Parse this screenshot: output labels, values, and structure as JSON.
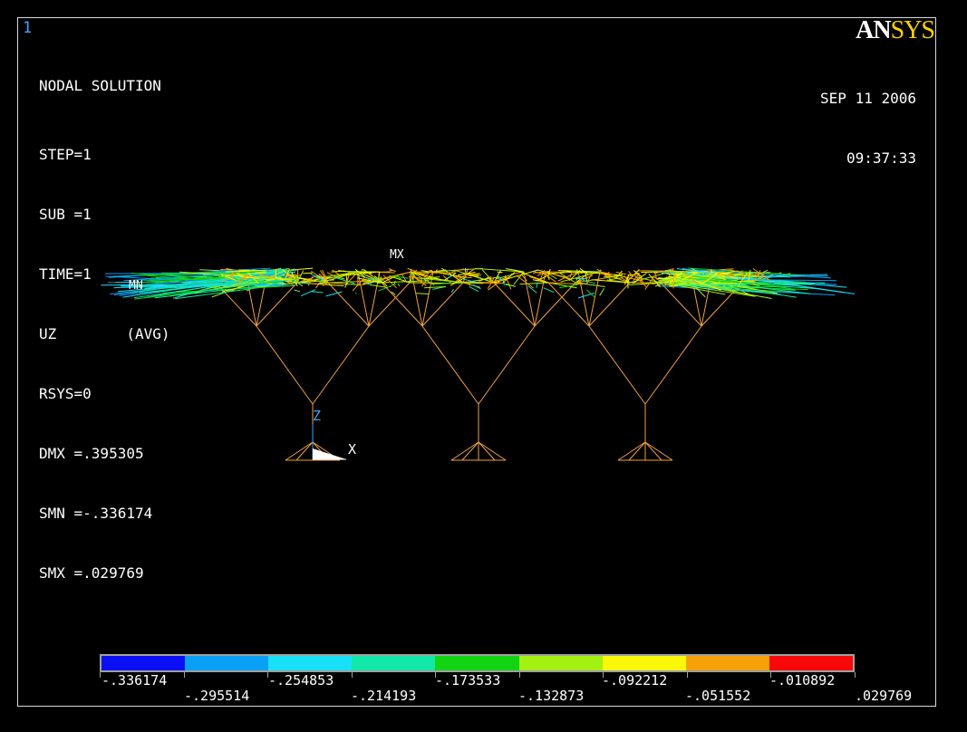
{
  "window_number": "1",
  "header": {
    "title": "NODAL SOLUTION",
    "lines": [
      "STEP=1",
      "SUB =1",
      "TIME=1",
      "UZ        (AVG)",
      "RSYS=0",
      "DMX =.395305",
      "SMN =-.336174",
      "SMX =.029769"
    ]
  },
  "date": "SEP 11 2006",
  "time": "09:37:33",
  "logo": {
    "part1": "AN",
    "part2": "SYS"
  },
  "markers": {
    "max": "MX",
    "min": "MN"
  },
  "triad": {
    "z": "Z",
    "x": "X"
  },
  "legend": {
    "colors": [
      "#0a10f5",
      "#0aa0f5",
      "#18e0f8",
      "#12e8a8",
      "#12d412",
      "#a4f012",
      "#f8f808",
      "#f8a008",
      "#f80808"
    ],
    "labels_top": [
      "-.336174",
      "-.254853",
      "-.173533",
      "-.092212",
      "-.010892"
    ],
    "labels_bottom": [
      "-.295514",
      "-.214193",
      "-.132873",
      "-.051552",
      ".029769"
    ]
  },
  "colors": {
    "member": "#f0a040",
    "window_num": "#37a6ff",
    "logo_sys": "#ffd200"
  }
}
